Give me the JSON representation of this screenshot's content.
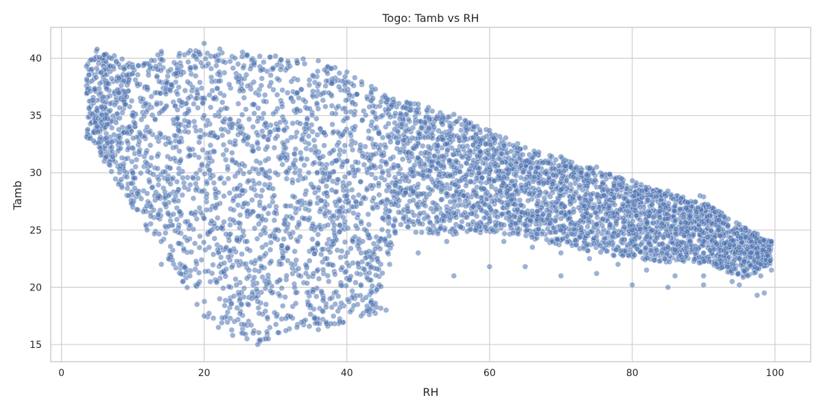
{
  "chart_data": {
    "type": "scatter",
    "title": "Togo: Tamb vs RH",
    "xlabel": "RH",
    "ylabel": "Tamb",
    "xlim": [
      -1.5,
      105
    ],
    "ylim": [
      13.5,
      42.7
    ],
    "xticks": [
      0,
      20,
      40,
      60,
      80,
      100
    ],
    "yticks": [
      15,
      20,
      25,
      30,
      35,
      40
    ],
    "grid": true,
    "marker_color": "#4c72b0",
    "series": [
      {
        "x": [
          3.5,
          5,
          6,
          8,
          10,
          14,
          20,
          22,
          26,
          30,
          33,
          36,
          40,
          44,
          50,
          55,
          60,
          65,
          70,
          75,
          80,
          85,
          90,
          95,
          99.5,
          4,
          4.5,
          6,
          8,
          10,
          12,
          15,
          17,
          19,
          20,
          22,
          24,
          26,
          27.5,
          29,
          33,
          36,
          39,
          42,
          45.5,
          55,
          60,
          65,
          70,
          75,
          80,
          85,
          90,
          95,
          97.5,
          98.5,
          99.5,
          8,
          10,
          12,
          15,
          18,
          20,
          25,
          30,
          35,
          40,
          45,
          50,
          55,
          60,
          65,
          70,
          75,
          80,
          85,
          90,
          95,
          10,
          15,
          20,
          25,
          30,
          35,
          40,
          45,
          50,
          55,
          60,
          65,
          70,
          75,
          80,
          85,
          90,
          95,
          14,
          18,
          22,
          26,
          30,
          34,
          38,
          42,
          46,
          50,
          54,
          58,
          62,
          66,
          70,
          74,
          78,
          82,
          86,
          90,
          94,
          98,
          13.5,
          14,
          60,
          70,
          80,
          85,
          88,
          89.5
        ],
        "y": [
          39.3,
          40.8,
          40.3,
          39.5,
          39.2,
          40.4,
          41.3,
          40.3,
          40.3,
          40.2,
          39.8,
          39.8,
          38.8,
          37.3,
          36,
          35.1,
          33.7,
          32.2,
          31.4,
          30.5,
          29.3,
          28.4,
          27.9,
          25.5,
          24,
          33,
          32.8,
          31,
          29,
          27,
          25,
          22.5,
          20.5,
          18.5,
          17.5,
          16.5,
          15.8,
          15.5,
          15,
          15.5,
          16.5,
          16.3,
          17,
          17.5,
          18,
          21,
          21.8,
          21.8,
          21,
          21.2,
          20.2,
          20,
          20.2,
          20.2,
          19.3,
          19.5,
          21.5,
          37,
          35,
          34,
          33,
          32,
          35,
          34,
          33,
          32,
          31,
          30,
          29,
          28,
          27,
          26.5,
          26,
          25.5,
          25,
          24.5,
          24,
          23.5,
          30,
          28,
          26,
          28,
          30,
          29,
          28,
          27.5,
          27,
          26.5,
          26,
          25.5,
          25,
          24.5,
          24,
          23.5,
          23,
          22.5,
          22,
          21,
          23,
          24,
          25,
          26,
          24,
          23,
          22,
          23,
          24,
          25,
          24,
          23.5,
          23,
          22.5,
          22,
          21.5,
          21,
          21,
          20.5,
          21,
          40.3,
          40.6,
          30.5,
          28.5,
          27.5,
          26,
          24.5,
          28
        ],
        "density": "dense cloud bounded by the listed envelope points"
      }
    ]
  }
}
